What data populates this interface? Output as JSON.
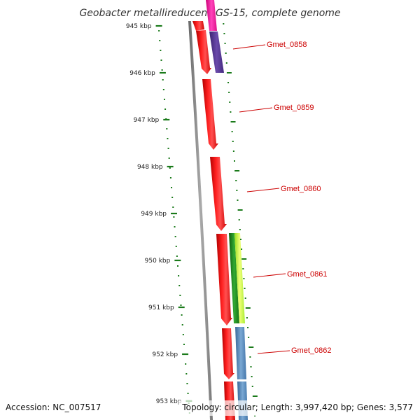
{
  "title": "Geobacter metallireducens GS-15, complete genome",
  "footer": {
    "accession": "Accession: NC_007517",
    "summary": "Topology: circular; Length: 3,997,420 bp; Genes: 3,577"
  },
  "ruler": {
    "labels": [
      "945 kbp",
      "946 kbp",
      "947 kbp",
      "948 kbp",
      "949 kbp",
      "950 kbp",
      "951 kbp",
      "952 kbp",
      "953 kbp"
    ],
    "color": "#1a7a1a"
  },
  "genes": [
    {
      "name": "Gmet_0858"
    },
    {
      "name": "Gmet_0859"
    },
    {
      "name": "Gmet_0860"
    },
    {
      "name": "Gmet_0861"
    },
    {
      "name": "Gmet_0862"
    }
  ],
  "colors": {
    "cds": "#ff1a1a",
    "backbone": "#888888",
    "label": "#cc0000",
    "feature_magenta": "#ff22aa",
    "feature_purple": "#553399",
    "feature_green_dark": "#228822",
    "feature_green_light": "#ccff44",
    "feature_blue": "#4a7fb5"
  }
}
